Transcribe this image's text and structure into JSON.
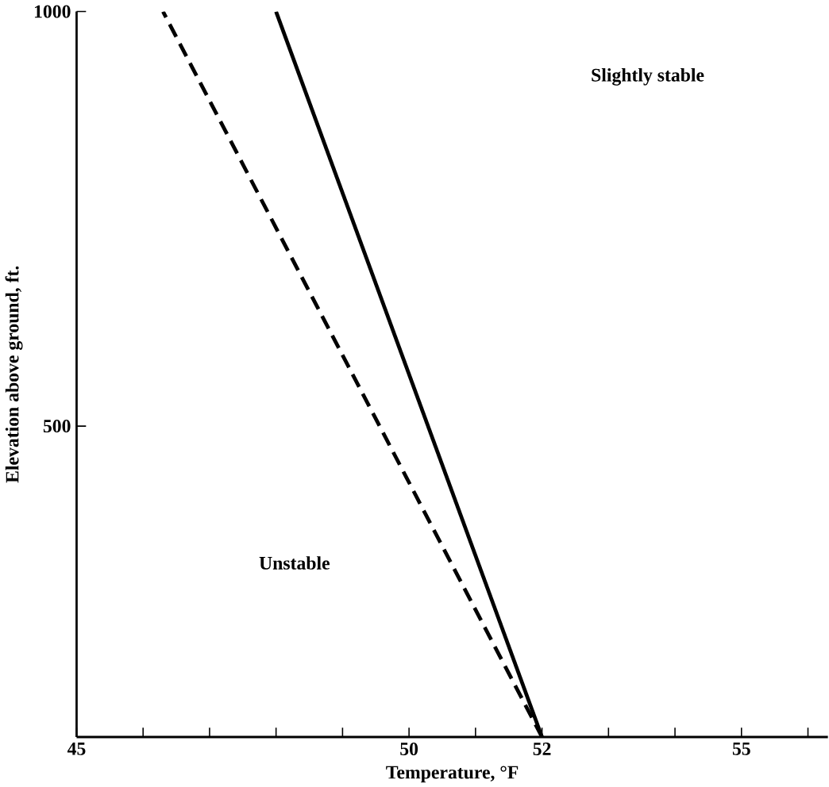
{
  "chart_data": {
    "type": "line",
    "xlabel": "Temperature, °F",
    "ylabel": "Elevation above ground, ft.",
    "x": [
      52,
      48
    ],
    "series": [
      {
        "color": "#000000",
        "values": [
          125,
          1000
        ],
        "line_style": "solid"
      },
      {
        "color": "#000000",
        "x": [
          52,
          46.3
        ],
        "values": [
          125,
          1000
        ],
        "line_style": "dashed"
      }
    ],
    "xlim": [
      45,
      56.3
    ],
    "ylim": [
      125,
      1000
    ],
    "xticks": [
      45,
      {
        "value": 46,
        "label": null
      },
      {
        "value": 47,
        "label": null
      },
      {
        "value": 48,
        "label": null
      },
      {
        "value": 49,
        "label": null
      },
      50,
      {
        "value": 51,
        "label": null
      },
      52,
      {
        "value": 53,
        "label": null
      },
      {
        "value": 54,
        "label": null
      },
      55,
      {
        "value": 56,
        "label": null
      }
    ],
    "yticks": [
      500,
      1000
    ],
    "annotations": [
      "Slightly stable",
      "Unstable"
    ],
    "grid": false,
    "marker": "none"
  }
}
